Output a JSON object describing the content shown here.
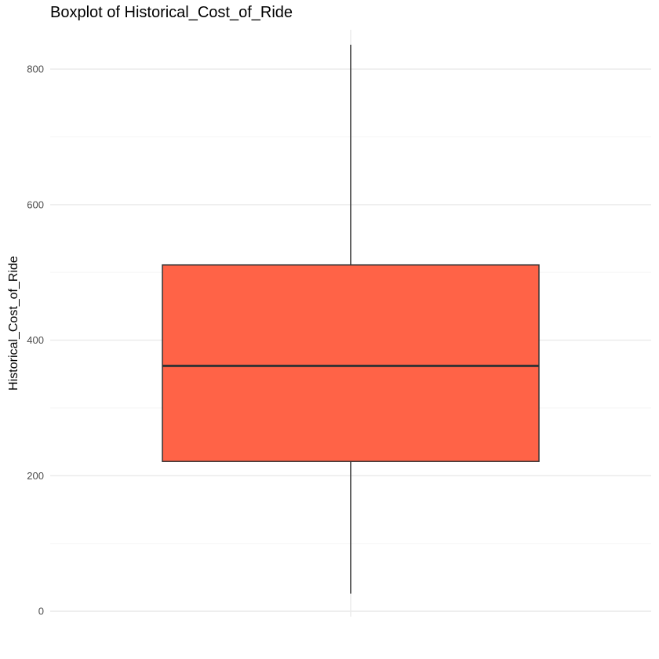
{
  "chart_data": {
    "type": "boxplot",
    "title": "Boxplot of Historical_Cost_of_Ride",
    "xlabel": "",
    "ylabel": "Historical_Cost_of_Ride",
    "ylim": [
      -8,
      858
    ],
    "y_ticks": [
      0,
      200,
      400,
      600,
      800
    ],
    "y_minor_ticks": [
      100,
      300,
      500,
      700
    ],
    "grid": true,
    "box": {
      "min": 26,
      "q1": 221,
      "median": 362,
      "q3": 511,
      "max": 836
    },
    "colors": {
      "fill": "#ff6347",
      "outline": "#333333",
      "grid_major": "#ebebeb",
      "grid_minor": "#f5f5f5"
    }
  }
}
